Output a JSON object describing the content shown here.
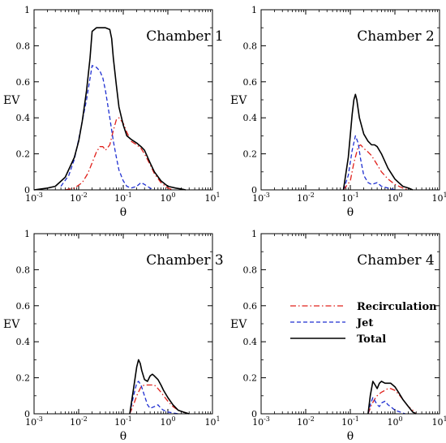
{
  "chart_data": [
    {
      "type": "line",
      "title": "Chamber 1",
      "xlabel": "θ",
      "ylabel": "EV",
      "xscale": "log",
      "xlim": [
        0.001,
        10
      ],
      "ylim": [
        0,
        1
      ],
      "xticks": [
        {
          "base": "10",
          "exp": "-3"
        },
        {
          "base": "10",
          "exp": "-2"
        },
        {
          "base": "10",
          "exp": "-1"
        },
        {
          "base": "10",
          "exp": "0"
        },
        {
          "base": "10",
          "exp": "1"
        }
      ],
      "yticks": [
        "0",
        "0.2",
        "0.4",
        "0.6",
        "0.8",
        "1"
      ],
      "series": [
        {
          "name": "Recirculation",
          "color": "#e0201b",
          "dash": "dashdot",
          "x": [
            0.005,
            0.008,
            0.012,
            0.016,
            0.02,
            0.025,
            0.03,
            0.035,
            0.04,
            0.05,
            0.06,
            0.07,
            0.08,
            0.1,
            0.12,
            0.15,
            0.2,
            0.25,
            0.3,
            0.4,
            0.5,
            0.7,
            1.0,
            1.3
          ],
          "y": [
            0,
            0.01,
            0.04,
            0.09,
            0.15,
            0.21,
            0.24,
            0.24,
            0.22,
            0.25,
            0.33,
            0.39,
            0.4,
            0.37,
            0.32,
            0.27,
            0.25,
            0.23,
            0.2,
            0.14,
            0.09,
            0.04,
            0.01,
            0
          ]
        },
        {
          "name": "Jet",
          "color": "#1f2fd1",
          "dash": "dash",
          "x": [
            0.004,
            0.006,
            0.008,
            0.01,
            0.012,
            0.015,
            0.02,
            0.025,
            0.03,
            0.035,
            0.04,
            0.05,
            0.06,
            0.07,
            0.08,
            0.1,
            0.12,
            0.15,
            0.2,
            0.25,
            0.3,
            0.4,
            0.5
          ],
          "y": [
            0.02,
            0.08,
            0.17,
            0.28,
            0.38,
            0.5,
            0.69,
            0.68,
            0.66,
            0.62,
            0.55,
            0.4,
            0.27,
            0.18,
            0.11,
            0.05,
            0.02,
            0.01,
            0.02,
            0.04,
            0.03,
            0.01,
            0
          ]
        },
        {
          "name": "Total",
          "color": "#000000",
          "dash": "solid",
          "x": [
            0.001,
            0.002,
            0.003,
            0.005,
            0.008,
            0.01,
            0.012,
            0.015,
            0.018,
            0.02,
            0.025,
            0.04,
            0.05,
            0.055,
            0.06,
            0.07,
            0.08,
            0.1,
            0.12,
            0.15,
            0.2,
            0.25,
            0.3,
            0.4,
            0.5,
            0.7,
            1.0,
            1.5,
            2.0,
            2.5
          ],
          "y": [
            0,
            0.01,
            0.02,
            0.07,
            0.18,
            0.27,
            0.38,
            0.55,
            0.73,
            0.88,
            0.9,
            0.9,
            0.89,
            0.84,
            0.73,
            0.58,
            0.46,
            0.36,
            0.3,
            0.28,
            0.26,
            0.24,
            0.22,
            0.15,
            0.1,
            0.05,
            0.02,
            0.01,
            0.005,
            0
          ]
        }
      ]
    },
    {
      "type": "line",
      "title": "Chamber 2",
      "xlabel": "θ",
      "ylabel": "EV",
      "xscale": "log",
      "xlim": [
        0.001,
        10
      ],
      "ylim": [
        0,
        1
      ],
      "xticks": [
        {
          "base": "10",
          "exp": "-3"
        },
        {
          "base": "10",
          "exp": "-2"
        },
        {
          "base": "10",
          "exp": "-1"
        },
        {
          "base": "10",
          "exp": "0"
        },
        {
          "base": "10",
          "exp": "1"
        }
      ],
      "yticks": [
        "0",
        "0.2",
        "0.4",
        "0.6",
        "0.8",
        "1"
      ],
      "series": [
        {
          "name": "Recirculation",
          "color": "#e0201b",
          "dash": "dashdot",
          "x": [
            0.07,
            0.1,
            0.12,
            0.15,
            0.17,
            0.2,
            0.25,
            0.3,
            0.4,
            0.5,
            0.7,
            1.0,
            1.5,
            2.0
          ],
          "y": [
            0,
            0.05,
            0.15,
            0.24,
            0.25,
            0.23,
            0.21,
            0.19,
            0.14,
            0.1,
            0.06,
            0.03,
            0.01,
            0
          ]
        },
        {
          "name": "Jet",
          "color": "#1f2fd1",
          "dash": "dash",
          "x": [
            0.07,
            0.09,
            0.11,
            0.13,
            0.15,
            0.17,
            0.2,
            0.25,
            0.3,
            0.4,
            0.5,
            0.7,
            1.0
          ],
          "y": [
            0,
            0.08,
            0.22,
            0.3,
            0.26,
            0.17,
            0.08,
            0.04,
            0.03,
            0.04,
            0.02,
            0.01,
            0
          ]
        },
        {
          "name": "Total",
          "color": "#000000",
          "dash": "solid",
          "x": [
            0.07,
            0.09,
            0.11,
            0.12,
            0.13,
            0.14,
            0.16,
            0.2,
            0.25,
            0.3,
            0.35,
            0.4,
            0.5,
            0.7,
            1.0,
            1.5,
            2.0,
            2.5
          ],
          "y": [
            0,
            0.18,
            0.42,
            0.5,
            0.53,
            0.5,
            0.4,
            0.31,
            0.27,
            0.25,
            0.25,
            0.24,
            0.2,
            0.12,
            0.06,
            0.02,
            0.01,
            0
          ]
        }
      ]
    },
    {
      "type": "line",
      "title": "Chamber 3",
      "xlabel": "θ",
      "ylabel": "EV",
      "xscale": "log",
      "xlim": [
        0.001,
        10
      ],
      "ylim": [
        0,
        1
      ],
      "xticks": [
        {
          "base": "10",
          "exp": "-3"
        },
        {
          "base": "10",
          "exp": "-2"
        },
        {
          "base": "10",
          "exp": "-1"
        },
        {
          "base": "10",
          "exp": "0"
        },
        {
          "base": "10",
          "exp": "1"
        }
      ],
      "yticks": [
        "0",
        "0.2",
        "0.4",
        "0.6",
        "0.8",
        "1"
      ],
      "series": [
        {
          "name": "Recirculation",
          "color": "#e0201b",
          "dash": "dashdot",
          "x": [
            0.14,
            0.17,
            0.2,
            0.25,
            0.3,
            0.4,
            0.5,
            0.6,
            0.7,
            0.8,
            1.0,
            1.3,
            1.7,
            2.2,
            3.0
          ],
          "y": [
            0,
            0.05,
            0.1,
            0.15,
            0.16,
            0.16,
            0.16,
            0.14,
            0.12,
            0.1,
            0.07,
            0.04,
            0.02,
            0.01,
            0
          ]
        },
        {
          "name": "Jet",
          "color": "#1f2fd1",
          "dash": "dash",
          "x": [
            0.14,
            0.17,
            0.2,
            0.22,
            0.25,
            0.3,
            0.35,
            0.4,
            0.5,
            0.6,
            0.7,
            0.8,
            1.0,
            1.3,
            1.7
          ],
          "y": [
            0,
            0.1,
            0.17,
            0.18,
            0.16,
            0.1,
            0.05,
            0.03,
            0.04,
            0.05,
            0.03,
            0.02,
            0.01,
            0.005,
            0
          ]
        },
        {
          "name": "Total",
          "color": "#000000",
          "dash": "solid",
          "x": [
            0.14,
            0.17,
            0.2,
            0.22,
            0.24,
            0.26,
            0.3,
            0.35,
            0.4,
            0.45,
            0.5,
            0.6,
            0.7,
            0.8,
            1.0,
            1.3,
            1.7,
            2.2,
            3.0
          ],
          "y": [
            0,
            0.14,
            0.26,
            0.3,
            0.28,
            0.24,
            0.19,
            0.18,
            0.21,
            0.22,
            0.21,
            0.19,
            0.16,
            0.13,
            0.09,
            0.05,
            0.02,
            0.01,
            0
          ]
        }
      ]
    },
    {
      "type": "line",
      "title": "Chamber 4",
      "xlabel": "θ",
      "ylabel": "EV",
      "xscale": "log",
      "xlim": [
        0.001,
        10
      ],
      "ylim": [
        0,
        1
      ],
      "xticks": [
        {
          "base": "10",
          "exp": "-3"
        },
        {
          "base": "10",
          "exp": "-2"
        },
        {
          "base": "10",
          "exp": "-1"
        },
        {
          "base": "10",
          "exp": "0"
        },
        {
          "base": "10",
          "exp": "1"
        }
      ],
      "yticks": [
        "0",
        "0.2",
        "0.4",
        "0.6",
        "0.8",
        "1"
      ],
      "legend": {
        "position": "center-right",
        "entries": [
          "Recirculation",
          "Jet",
          "Total"
        ]
      },
      "series": [
        {
          "name": "Recirculation",
          "color": "#e0201b",
          "dash": "dashdot",
          "x": [
            0.25,
            0.3,
            0.35,
            0.4,
            0.5,
            0.6,
            0.7,
            0.8,
            1.0,
            1.2,
            1.5,
            2.0,
            2.5,
            3.0
          ],
          "y": [
            0,
            0.05,
            0.08,
            0.1,
            0.12,
            0.13,
            0.14,
            0.14,
            0.13,
            0.11,
            0.08,
            0.04,
            0.02,
            0
          ]
        },
        {
          "name": "Jet",
          "color": "#1f2fd1",
          "dash": "dash",
          "x": [
            0.25,
            0.28,
            0.32,
            0.36,
            0.4,
            0.45,
            0.5,
            0.6,
            0.7,
            0.8,
            1.0,
            1.3,
            1.7
          ],
          "y": [
            0,
            0.05,
            0.09,
            0.07,
            0.05,
            0.04,
            0.06,
            0.07,
            0.05,
            0.04,
            0.02,
            0.01,
            0
          ]
        },
        {
          "name": "Total",
          "color": "#000000",
          "dash": "solid",
          "x": [
            0.25,
            0.28,
            0.32,
            0.36,
            0.4,
            0.45,
            0.5,
            0.6,
            0.7,
            0.8,
            1.0,
            1.2,
            1.5,
            2.0,
            2.5,
            3.0
          ],
          "y": [
            0,
            0.1,
            0.18,
            0.16,
            0.14,
            0.17,
            0.18,
            0.17,
            0.17,
            0.17,
            0.15,
            0.12,
            0.08,
            0.04,
            0.01,
            0
          ]
        }
      ]
    }
  ]
}
